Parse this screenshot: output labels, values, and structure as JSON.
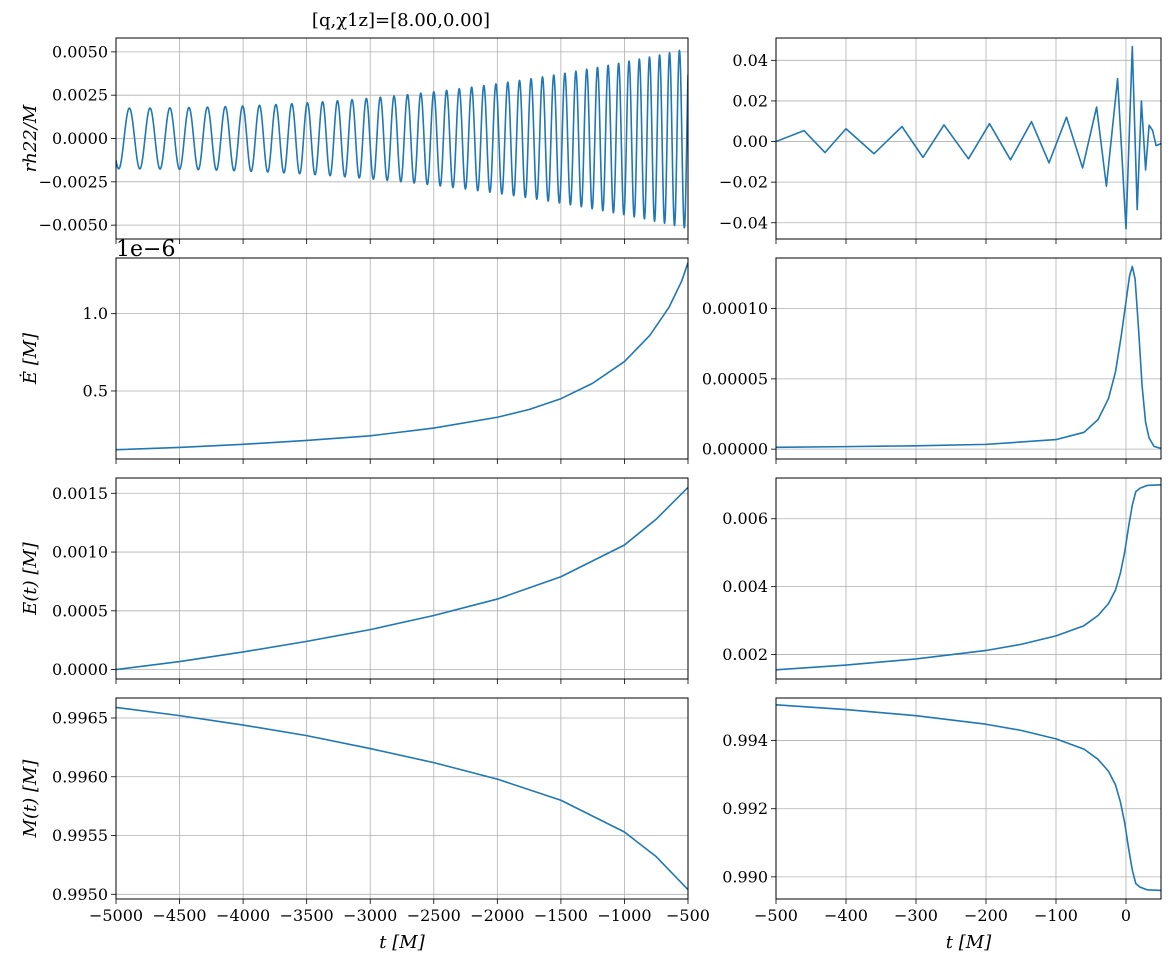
{
  "title": "[q,χ1z]=[8.00,0.00]",
  "chart_data": [
    {
      "id": "strain-inspiral",
      "type": "line",
      "ylabel": "rh22/M",
      "xlim": [
        -5000,
        -500
      ],
      "ylim": [
        -0.0058,
        0.0058
      ],
      "xticks": [
        -5000,
        -4500,
        -4000,
        -3500,
        -3000,
        -2500,
        -2000,
        -1500,
        -1000,
        -500
      ],
      "xtick_labels": [
        "−5000",
        "−4500",
        "−4000",
        "−3500",
        "−3000",
        "−2500",
        "−2000",
        "−1500",
        "−1000",
        "−500"
      ],
      "yticks": [
        -0.005,
        -0.0025,
        0,
        0.0025,
        0.005
      ],
      "ytick_labels": [
        "−0.0050",
        "−0.0025",
        "0.0000",
        "0.0025",
        "0.0050"
      ],
      "show_xticklabels": false,
      "grid": true,
      "color": "#1f77b4",
      "waveform": {
        "t0": -5000,
        "t1": -500,
        "a_start": 0.00175,
        "a_end": 0.0052,
        "cycles": 42.5,
        "phase0": 3.93
      }
    },
    {
      "id": "strain-merger",
      "type": "line",
      "xlim": [
        -500,
        50
      ],
      "ylim": [
        -0.048,
        0.051
      ],
      "xticks": [
        -500,
        -400,
        -300,
        -200,
        -100,
        0
      ],
      "xtick_labels": [
        "−500",
        "−400",
        "−300",
        "−200",
        "−100",
        "0"
      ],
      "yticks": [
        -0.04,
        -0.02,
        0,
        0.02,
        0.04
      ],
      "ytick_labels": [
        "−0.04",
        "−0.02",
        "0.00",
        "0.02",
        "0.04"
      ],
      "show_xticklabels": false,
      "grid": true,
      "color": "#1f77b4",
      "points": [
        [
          -500,
          0
        ],
        [
          -460,
          0.0054
        ],
        [
          -430,
          -0.0054
        ],
        [
          -400,
          0.0063
        ],
        [
          -360,
          -0.006
        ],
        [
          -320,
          0.0074
        ],
        [
          -290,
          -0.0078
        ],
        [
          -260,
          0.0082
        ],
        [
          -225,
          -0.0085
        ],
        [
          -195,
          0.0088
        ],
        [
          -165,
          -0.009
        ],
        [
          -135,
          0.0098
        ],
        [
          -110,
          -0.0105
        ],
        [
          -85,
          0.012
        ],
        [
          -62,
          -0.013
        ],
        [
          -42,
          0.017
        ],
        [
          -28,
          -0.022
        ],
        [
          -12,
          0.031
        ],
        [
          0,
          -0.043
        ],
        [
          9,
          0.0468
        ],
        [
          16,
          -0.0335
        ],
        [
          22,
          0.02
        ],
        [
          28,
          -0.014
        ],
        [
          33,
          0.008
        ],
        [
          38,
          0.0055
        ],
        [
          43,
          -0.002
        ],
        [
          50,
          -0.001
        ]
      ]
    },
    {
      "id": "edot-inspiral",
      "type": "line",
      "ylabel": "Ė [M]",
      "xlim": [
        -5000,
        -500
      ],
      "ylim": [
        0.06,
        1.36
      ],
      "yticks": [
        0.5,
        1.0
      ],
      "ytick_labels": [
        "0.5",
        "1.0"
      ],
      "offset_text": "1e−6",
      "xticks": [
        -5000,
        -4500,
        -4000,
        -3500,
        -3000,
        -2500,
        -2000,
        -1500,
        -1000,
        -500
      ],
      "show_xticklabels": false,
      "grid": true,
      "color": "#1f77b4",
      "points": [
        [
          -5000,
          0.12
        ],
        [
          -4500,
          0.135
        ],
        [
          -4000,
          0.155
        ],
        [
          -3500,
          0.18
        ],
        [
          -3000,
          0.21
        ],
        [
          -2500,
          0.26
        ],
        [
          -2000,
          0.33
        ],
        [
          -1750,
          0.38
        ],
        [
          -1500,
          0.45
        ],
        [
          -1250,
          0.55
        ],
        [
          -1000,
          0.69
        ],
        [
          -800,
          0.86
        ],
        [
          -650,
          1.04
        ],
        [
          -550,
          1.21
        ],
        [
          -500,
          1.33
        ]
      ]
    },
    {
      "id": "edot-merger",
      "type": "line",
      "xlim": [
        -500,
        50
      ],
      "ylim": [
        -7e-06,
        0.000136
      ],
      "yticks": [
        0,
        5e-05,
        0.0001
      ],
      "ytick_labels": [
        "0.00000",
        "0.00005",
        "0.00010"
      ],
      "xticks": [
        -500,
        -400,
        -300,
        -200,
        -100,
        0
      ],
      "show_xticklabels": false,
      "grid": true,
      "color": "#1f77b4",
      "points": [
        [
          -500,
          1.3e-06
        ],
        [
          -400,
          1.8e-06
        ],
        [
          -300,
          2.4e-06
        ],
        [
          -200,
          3.4e-06
        ],
        [
          -100,
          6.8e-06
        ],
        [
          -60,
          1.2e-05
        ],
        [
          -40,
          2.1e-05
        ],
        [
          -25,
          3.6e-05
        ],
        [
          -15,
          5.5e-05
        ],
        [
          -7,
          8e-05
        ],
        [
          0,
          0.000105
        ],
        [
          5,
          0.000123
        ],
        [
          9,
          0.00013
        ],
        [
          13,
          0.000121
        ],
        [
          18,
          8.5e-05
        ],
        [
          23,
          4.5e-05
        ],
        [
          28,
          1.9e-05
        ],
        [
          33,
          8e-06
        ],
        [
          40,
          2e-06
        ],
        [
          50,
          5e-07
        ]
      ]
    },
    {
      "id": "energy-inspiral",
      "type": "line",
      "ylabel": "E(t) [M]",
      "xlim": [
        -5000,
        -500
      ],
      "ylim": [
        -8e-05,
        0.00163
      ],
      "yticks": [
        0,
        0.0005,
        0.001,
        0.0015
      ],
      "ytick_labels": [
        "0.0000",
        "0.0005",
        "0.0010",
        "0.0015"
      ],
      "xticks": [
        -5000,
        -4500,
        -4000,
        -3500,
        -3000,
        -2500,
        -2000,
        -1500,
        -1000,
        -500
      ],
      "show_xticklabels": false,
      "grid": true,
      "color": "#1f77b4",
      "points": [
        [
          -5000,
          0.0
        ],
        [
          -4500,
          6.8e-05
        ],
        [
          -4000,
          0.00015
        ],
        [
          -3500,
          0.00024
        ],
        [
          -3000,
          0.00034
        ],
        [
          -2500,
          0.00046
        ],
        [
          -2000,
          0.0006
        ],
        [
          -1500,
          0.00079
        ],
        [
          -1000,
          0.00106
        ],
        [
          -750,
          0.00128
        ],
        [
          -500,
          0.00155
        ]
      ]
    },
    {
      "id": "energy-merger",
      "type": "line",
      "xlim": [
        -500,
        50
      ],
      "ylim": [
        0.00128,
        0.0072
      ],
      "yticks": [
        0.002,
        0.004,
        0.006
      ],
      "ytick_labels": [
        "0.002",
        "0.004",
        "0.006"
      ],
      "xticks": [
        -500,
        -400,
        -300,
        -200,
        -100,
        0
      ],
      "show_xticklabels": false,
      "grid": true,
      "color": "#1f77b4",
      "points": [
        [
          -500,
          0.00155
        ],
        [
          -400,
          0.00169
        ],
        [
          -300,
          0.00187
        ],
        [
          -200,
          0.00212
        ],
        [
          -150,
          0.0023
        ],
        [
          -100,
          0.00255
        ],
        [
          -60,
          0.00285
        ],
        [
          -40,
          0.00315
        ],
        [
          -25,
          0.0035
        ],
        [
          -15,
          0.0039
        ],
        [
          -8,
          0.0044
        ],
        [
          -2,
          0.005
        ],
        [
          4,
          0.0058
        ],
        [
          9,
          0.0064
        ],
        [
          14,
          0.0068
        ],
        [
          20,
          0.0069
        ],
        [
          30,
          0.00698
        ],
        [
          50,
          0.007
        ]
      ]
    },
    {
      "id": "mass-inspiral",
      "type": "line",
      "ylabel": "M(t) [M]",
      "xlabel": "t [M]",
      "xlim": [
        -5000,
        -500
      ],
      "ylim": [
        0.99496,
        0.99667
      ],
      "yticks": [
        0.995,
        0.9955,
        0.996,
        0.9965
      ],
      "ytick_labels": [
        "0.9950",
        "0.9955",
        "0.9960",
        "0.9965"
      ],
      "xticks": [
        -5000,
        -4500,
        -4000,
        -3500,
        -3000,
        -2500,
        -2000,
        -1500,
        -1000,
        -500
      ],
      "xtick_labels": [
        "−5000",
        "−4500",
        "−4000",
        "−3500",
        "−3000",
        "−2500",
        "−2000",
        "−1500",
        "−1000",
        "−500"
      ],
      "show_xticklabels": true,
      "grid": true,
      "color": "#1f77b4",
      "points": [
        [
          -5000,
          0.99659
        ],
        [
          -4500,
          0.99652
        ],
        [
          -4000,
          0.99644
        ],
        [
          -3500,
          0.99635
        ],
        [
          -3000,
          0.99624
        ],
        [
          -2500,
          0.99612
        ],
        [
          -2000,
          0.99598
        ],
        [
          -1500,
          0.9958
        ],
        [
          -1000,
          0.99553
        ],
        [
          -750,
          0.99532
        ],
        [
          -500,
          0.99504
        ]
      ]
    },
    {
      "id": "mass-merger",
      "type": "line",
      "xlabel": "t [M]",
      "xlim": [
        -500,
        50
      ],
      "ylim": [
        0.98935,
        0.99525
      ],
      "yticks": [
        0.99,
        0.992,
        0.994
      ],
      "ytick_labels": [
        "0.990",
        "0.992",
        "0.994"
      ],
      "xticks": [
        -500,
        -400,
        -300,
        -200,
        -100,
        0
      ],
      "xtick_labels": [
        "−500",
        "−400",
        "−300",
        "−200",
        "−100",
        "0"
      ],
      "show_xticklabels": true,
      "grid": true,
      "color": "#1f77b4",
      "points": [
        [
          -500,
          0.99505
        ],
        [
          -400,
          0.99491
        ],
        [
          -300,
          0.99473
        ],
        [
          -200,
          0.99448
        ],
        [
          -150,
          0.9943
        ],
        [
          -100,
          0.99405
        ],
        [
          -60,
          0.99375
        ],
        [
          -40,
          0.99345
        ],
        [
          -25,
          0.9931
        ],
        [
          -15,
          0.9927
        ],
        [
          -8,
          0.9922
        ],
        [
          -2,
          0.9916
        ],
        [
          4,
          0.9908
        ],
        [
          9,
          0.9902
        ],
        [
          14,
          0.9898
        ],
        [
          20,
          0.9897
        ],
        [
          30,
          0.98962
        ],
        [
          50,
          0.9896
        ]
      ]
    }
  ]
}
